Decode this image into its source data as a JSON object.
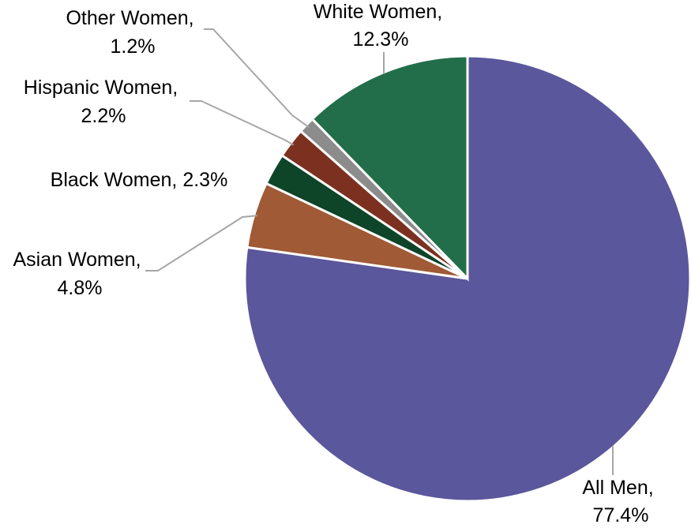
{
  "chart_data": {
    "type": "pie",
    "title": "",
    "start_angle_deg": 0,
    "direction": "clockwise",
    "slices": [
      {
        "label": "All Men",
        "value": 77.4,
        "value_label": "77.4%",
        "color": "#5b579c"
      },
      {
        "label": "Asian Women",
        "value": 4.8,
        "value_label": "4.8%",
        "color": "#a05a36"
      },
      {
        "label": "Black Women",
        "value": 2.3,
        "value_label": "2.3%",
        "color": "#0e4428"
      },
      {
        "label": "Hispanic Women",
        "value": 2.2,
        "value_label": "2.2%",
        "color": "#7c3120"
      },
      {
        "label": "Other Women",
        "value": 1.2,
        "value_label": "1.2%",
        "color": "#8c8c8c"
      },
      {
        "label": "White Women",
        "value": 12.3,
        "value_label": "12.3%",
        "color": "#236e4a"
      }
    ],
    "data_labels": [
      {
        "line1": "All Men,",
        "line2": "77.4%"
      },
      {
        "line1": "Asian Women,",
        "line2": "4.8%"
      },
      {
        "line1": "Black Women, 2.3%",
        "line2": ""
      },
      {
        "line1": "Hispanic Women,",
        "line2": "2.2%"
      },
      {
        "line1": "Other Women,",
        "line2": "1.2%"
      },
      {
        "line1": "White Women,",
        "line2": "12.3%"
      }
    ],
    "legend": "none"
  }
}
